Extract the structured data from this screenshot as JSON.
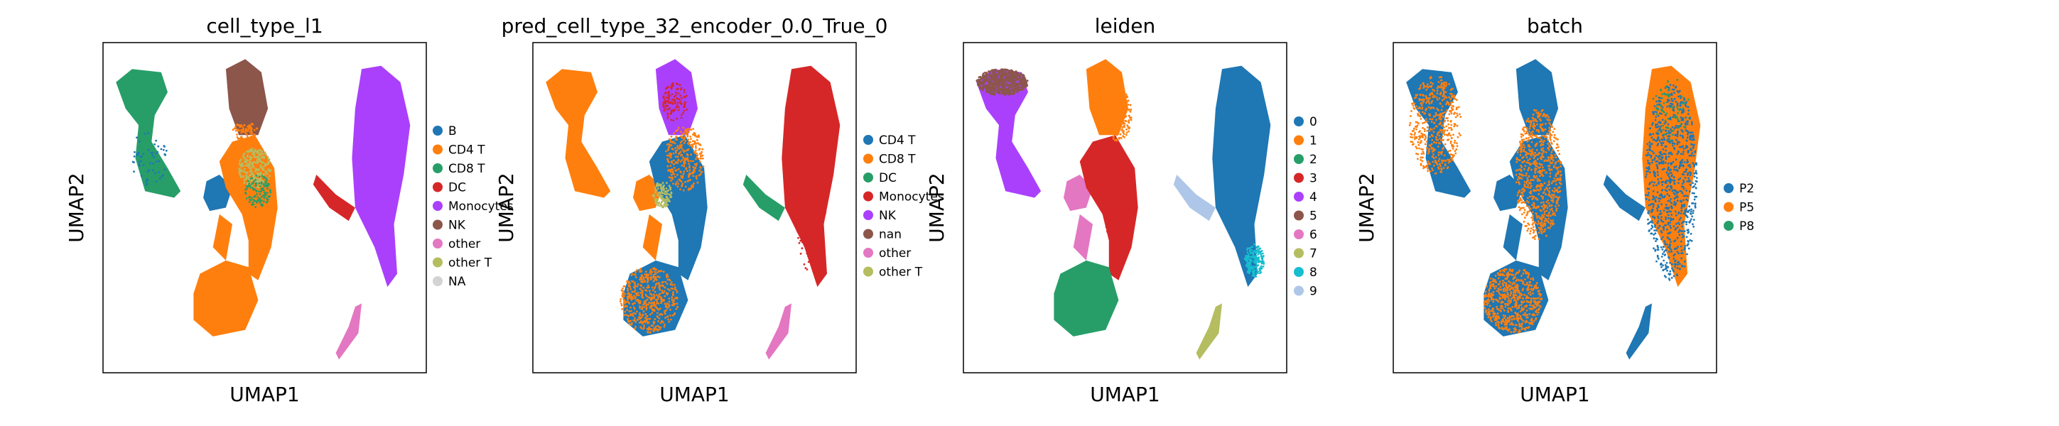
{
  "figure": {
    "x_axis_label": "UMAP1",
    "y_axis_label": "UMAP2"
  },
  "colors": {
    "B": "#1f77b4",
    "CD4 T": "#ff7f0e",
    "CD8 T": "#279e68",
    "DC": "#d62728",
    "Monocytes": "#aa40fc",
    "NK": "#8c564b",
    "other": "#e377c2",
    "other T": "#b5bd61",
    "NA": "#d3d3d3",
    "nan": "#8c564b",
    "leiden_0": "#1f77b4",
    "leiden_1": "#ff7f0e",
    "leiden_2": "#279e68",
    "leiden_3": "#d62728",
    "leiden_4": "#aa40fc",
    "leiden_5": "#8c564b",
    "leiden_6": "#e377c2",
    "leiden_7": "#b5bd61",
    "leiden_8": "#17becf",
    "leiden_9": "#aec7e8",
    "P2": "#1f77b4",
    "P5": "#ff7f0e",
    "P8": "#279e68"
  },
  "chart_data": [
    {
      "type": "scatter",
      "title": "cell_type_l1",
      "xlabel": "UMAP1",
      "ylabel": "UMAP2",
      "legend_placement": "right",
      "grid": false,
      "series": [
        {
          "name": "B",
          "color": "#1f77b4",
          "region": "small round cluster center-left"
        },
        {
          "name": "CD4 T",
          "color": "#ff7f0e",
          "region": "large bottom-center cluster and central stripe"
        },
        {
          "name": "CD8 T",
          "color": "#279e68",
          "region": "top-left elongated cluster"
        },
        {
          "name": "DC",
          "color": "#d62728",
          "region": "small arm left of right cluster"
        },
        {
          "name": "Monocytes",
          "color": "#aa40fc",
          "region": "large right cluster"
        },
        {
          "name": "NK",
          "color": "#8c564b",
          "region": "top-center cluster"
        },
        {
          "name": "other",
          "color": "#e377c2",
          "region": "bottom-right tip"
        },
        {
          "name": "other T",
          "color": "#b5bd61",
          "region": "mixed within central stripe"
        },
        {
          "name": "NA",
          "color": "#d3d3d3",
          "region": ""
        }
      ]
    },
    {
      "type": "scatter",
      "title": "pred_cell_type_32_encoder_0.0_True_0",
      "xlabel": "UMAP1",
      "ylabel": "UMAP2",
      "legend_placement": "right",
      "grid": false,
      "series": [
        {
          "name": "CD4 T",
          "color": "#1f77b4"
        },
        {
          "name": "CD8 T",
          "color": "#ff7f0e"
        },
        {
          "name": "DC",
          "color": "#279e68"
        },
        {
          "name": "Monocytes",
          "color": "#d62728"
        },
        {
          "name": "NK",
          "color": "#aa40fc"
        },
        {
          "name": "nan",
          "color": "#8c564b"
        },
        {
          "name": "other",
          "color": "#e377c2"
        },
        {
          "name": "other T",
          "color": "#b5bd61"
        }
      ]
    },
    {
      "type": "scatter",
      "title": "leiden",
      "xlabel": "UMAP1",
      "ylabel": "UMAP2",
      "legend_placement": "right",
      "grid": false,
      "series": [
        {
          "name": "0",
          "color": "#1f77b4"
        },
        {
          "name": "1",
          "color": "#ff7f0e"
        },
        {
          "name": "2",
          "color": "#279e68"
        },
        {
          "name": "3",
          "color": "#d62728"
        },
        {
          "name": "4",
          "color": "#aa40fc"
        },
        {
          "name": "5",
          "color": "#8c564b"
        },
        {
          "name": "6",
          "color": "#e377c2"
        },
        {
          "name": "7",
          "color": "#b5bd61"
        },
        {
          "name": "8",
          "color": "#17becf"
        },
        {
          "name": "9",
          "color": "#aec7e8"
        }
      ]
    },
    {
      "type": "scatter",
      "title": "batch",
      "xlabel": "UMAP1",
      "ylabel": "UMAP2",
      "legend_placement": "right",
      "grid": false,
      "series": [
        {
          "name": "P2",
          "color": "#1f77b4"
        },
        {
          "name": "P5",
          "color": "#ff7f0e"
        },
        {
          "name": "P8",
          "color": "#279e68"
        }
      ]
    }
  ]
}
